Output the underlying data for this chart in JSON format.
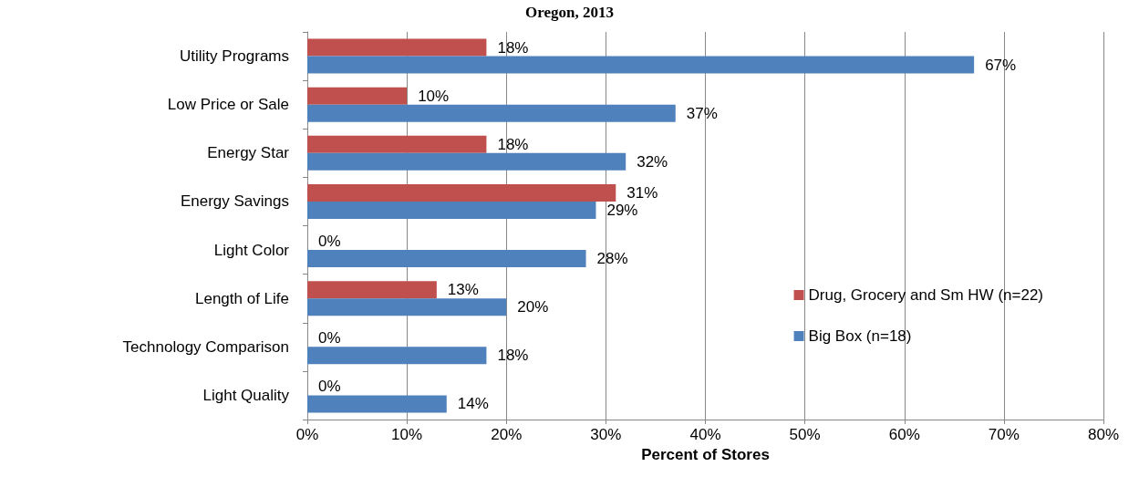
{
  "chart_data": {
    "type": "bar",
    "orientation": "horizontal",
    "title": "Oregon, 2013",
    "xlabel": "Percent of Stores",
    "categories": [
      "Utility Programs",
      "Low Price or Sale",
      "Energy Star",
      "Energy Savings",
      "Light Color",
      "Length of Life",
      "Technology Comparison",
      "Light Quality"
    ],
    "series": [
      {
        "name": "Drug, Grocery and Sm HW (n=22)",
        "color": "#c0504d",
        "values": [
          18,
          10,
          18,
          31,
          0,
          13,
          0,
          0
        ],
        "value_labels": [
          "18%",
          "10%",
          "18%",
          "31%",
          "0%",
          "13%",
          "0%",
          "0%"
        ]
      },
      {
        "name": "Big Box (n=18)",
        "color": "#4f81bd",
        "values": [
          67,
          37,
          32,
          29,
          28,
          20,
          18,
          14
        ],
        "value_labels": [
          "67%",
          "37%",
          "32%",
          "29%",
          "28%",
          "20%",
          "18%",
          "14%"
        ]
      }
    ],
    "xlim": [
      0,
      80
    ],
    "xticks": [
      {
        "value": 0,
        "label": "0%"
      },
      {
        "value": 10,
        "label": "10%"
      },
      {
        "value": 20,
        "label": "20%"
      },
      {
        "value": 30,
        "label": "30%"
      },
      {
        "value": 40,
        "label": "40%"
      },
      {
        "value": 50,
        "label": "50%"
      },
      {
        "value": 60,
        "label": "60%"
      },
      {
        "value": 70,
        "label": "70%"
      },
      {
        "value": 80,
        "label": "80%"
      }
    ],
    "grid": "x",
    "legend": "right"
  }
}
